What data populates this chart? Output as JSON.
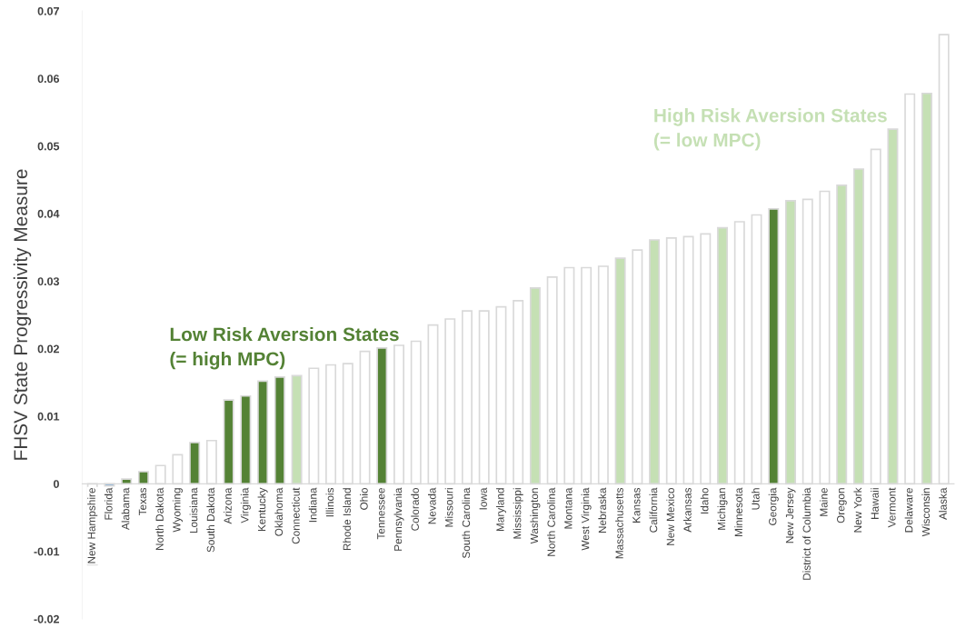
{
  "chart_data": {
    "type": "bar",
    "ylabel": "FHSV State Progressivity Measure",
    "categories": [
      "New Hampshire",
      "Florida",
      "Alabama",
      "Texas",
      "North Dakota",
      "Wyoming",
      "Louisiana",
      "South Dakota",
      "Arizona",
      "Virginia",
      "Kentucky",
      "Oklahoma",
      "Connecticut",
      "Indiana",
      "Illinois",
      "Rhode Island",
      "Ohio",
      "Tennessee",
      "Pennsylvania",
      "Colorado",
      "Nevada",
      "Missouri",
      "South Carolina",
      "Iowa",
      "Maryland",
      "Mississippi",
      "Washington",
      "North Carolina",
      "Montana",
      "West Virginia",
      "Nebraska",
      "Massachusetts",
      "Kansas",
      "California",
      "New Mexico",
      "Arkansas",
      "Idaho",
      "Michigan",
      "Minnesota",
      "Utah",
      "Georgia",
      "New Jersey",
      "District of Columbia",
      "Maine",
      "Oregon",
      "New York",
      "Hawaii",
      "Vermont",
      "Delaware",
      "Wisconsin",
      "Alaska"
    ],
    "values": [
      -0.012,
      -0.0003,
      0.0007,
      0.0018,
      0.0027,
      0.0043,
      0.0061,
      0.0064,
      0.0124,
      0.013,
      0.0152,
      0.0158,
      0.016,
      0.0171,
      0.0176,
      0.0178,
      0.0196,
      0.0201,
      0.0205,
      0.0211,
      0.0235,
      0.0244,
      0.0256,
      0.0256,
      0.0262,
      0.0271,
      0.029,
      0.0306,
      0.032,
      0.032,
      0.0322,
      0.0334,
      0.0346,
      0.0361,
      0.0364,
      0.0366,
      0.037,
      0.0379,
      0.0388,
      0.0398,
      0.0407,
      0.0419,
      0.0421,
      0.0433,
      0.0442,
      0.0466,
      0.0495,
      0.0525,
      0.0577,
      0.0578,
      0.0665
    ],
    "colors": [
      "#ffffff",
      "#5b9bd5",
      "#548235",
      "#548235",
      "#ffffff",
      "#ffffff",
      "#548235",
      "#ffffff",
      "#548235",
      "#548235",
      "#548235",
      "#548235",
      "#c5e0b4",
      "#ffffff",
      "#ffffff",
      "#ffffff",
      "#ffffff",
      "#548235",
      "#ffffff",
      "#ffffff",
      "#ffffff",
      "#ffffff",
      "#ffffff",
      "#ffffff",
      "#ffffff",
      "#ffffff",
      "#c5e0b4",
      "#ffffff",
      "#ffffff",
      "#ffffff",
      "#ffffff",
      "#c5e0b4",
      "#ffffff",
      "#c5e0b4",
      "#ffffff",
      "#ffffff",
      "#ffffff",
      "#c5e0b4",
      "#ffffff",
      "#ffffff",
      "#548235",
      "#c5e0b4",
      "#ffffff",
      "#ffffff",
      "#c5e0b4",
      "#c5e0b4",
      "#ffffff",
      "#c5e0b4",
      "#ffffff",
      "#c5e0b4",
      "#ffffff"
    ],
    "ylim": [
      -0.02,
      0.07
    ],
    "yticks": [
      -0.02,
      -0.01,
      0,
      0.01,
      0.02,
      0.03,
      0.04,
      0.05,
      0.06,
      0.07
    ],
    "annotations": [
      "Low Risk Aversion States\n(= high MPC)",
      "High Risk Aversion States\n(= low MPC)"
    ],
    "grid": false,
    "legend": false
  }
}
